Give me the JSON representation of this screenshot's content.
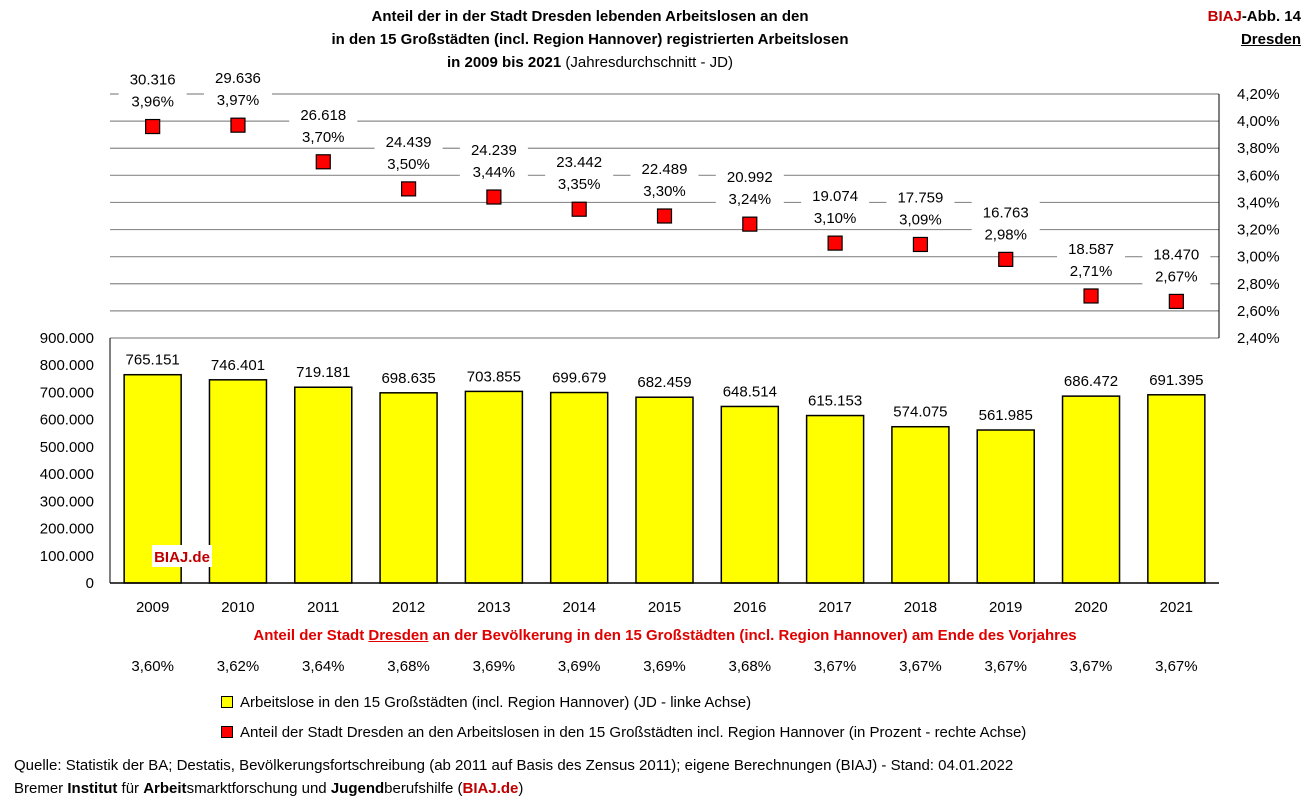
{
  "header": {
    "title_line1": "Anteil der in der Stadt Dresden lebenden Arbeitslosen an den",
    "title_line2": "in den 15 Großstädten (incl. Region Hannover) registrierten Arbeitslosen",
    "title_line3_bold": "in 2009 bis 2021",
    "title_line3_plain": "(Jahresdurchschnitt - JD)",
    "tag_brand": "BIAJ",
    "tag_fig": "-Abb. 14",
    "tag_city": "Dresden"
  },
  "chart_data": {
    "type": "bar+scatter",
    "categories": [
      "2009",
      "2010",
      "2011",
      "2012",
      "2013",
      "2014",
      "2015",
      "2016",
      "2017",
      "2018",
      "2019",
      "2020",
      "2021"
    ],
    "series": [
      {
        "name": "Arbeitslose in den 15 Großstädten (incl. Region Hannover) (JD - linke Achse)",
        "type": "bar",
        "axis": "left",
        "color": "#ffff00",
        "values": [
          765151,
          746401,
          719181,
          698635,
          703855,
          699679,
          682459,
          648514,
          615153,
          574075,
          561985,
          686472,
          691395
        ],
        "labels": [
          "765.151",
          "746.401",
          "719.181",
          "698.635",
          "703.855",
          "699.679",
          "682.459",
          "648.514",
          "615.153",
          "574.075",
          "561.985",
          "686.472",
          "691.395"
        ]
      },
      {
        "name": "Anteil der Stadt Dresden an den Arbeitslosen in den 15 Großstädten incl. Region Hannover (in Prozent - rechte Achse)",
        "type": "scatter",
        "axis": "right",
        "color": "#ff0000",
        "values": [
          3.96,
          3.97,
          3.7,
          3.5,
          3.44,
          3.35,
          3.3,
          3.24,
          3.1,
          3.09,
          2.98,
          2.71,
          2.67
        ],
        "labels": [
          "3,96%",
          "3,97%",
          "3,70%",
          "3,50%",
          "3,44%",
          "3,35%",
          "3,30%",
          "3,24%",
          "3,10%",
          "3,09%",
          "2,98%",
          "2,71%",
          "2,67%"
        ],
        "count_labels": [
          "30.316",
          "29.636",
          "26.618",
          "24.439",
          "24.239",
          "23.442",
          "22.489",
          "20.992",
          "19.074",
          "17.759",
          "16.763",
          "18.587",
          "18.470"
        ]
      }
    ],
    "left_axis": {
      "min": 0,
      "max": 900000,
      "ticks": [
        "0",
        "100.000",
        "200.000",
        "300.000",
        "400.000",
        "500.000",
        "600.000",
        "700.000",
        "800.000",
        "900.000"
      ]
    },
    "right_axis": {
      "min": 2.4,
      "max": 4.2,
      "ticks": [
        "2,40%",
        "2,60%",
        "2,80%",
        "3,00%",
        "3,20%",
        "3,40%",
        "3,60%",
        "3,80%",
        "4,00%",
        "4,20%"
      ]
    },
    "watermark": "BIAJ.de",
    "population_share": {
      "heading_pre": "Anteil der Stadt",
      "heading_city": "Dresden",
      "heading_post": "an der Bevölkerung in den 15 Großstädten (incl. Region Hannover) am Ende des Vorjahres",
      "values": [
        "3,60%",
        "3,62%",
        "3,64%",
        "3,68%",
        "3,69%",
        "3,69%",
        "3,69%",
        "3,68%",
        "3,67%",
        "3,67%",
        "3,67%",
        "3,67%",
        "3,67%"
      ]
    }
  },
  "legend": {
    "bar_label": "Arbeitslose in den 15 Großstädten (incl. Region Hannover) (JD - linke Achse)",
    "marker_label": "Anteil der Stadt Dresden an den Arbeitslosen in den 15 Großstädten incl. Region Hannover (in Prozent - rechte Achse)"
  },
  "footer": {
    "source": "Quelle: Statistik der BA; Destatis, Bevölkerungsfortschreibung (ab 2011 auf Basis des Zensus 2011); eigene Berechnungen (BIAJ) - Stand: 04.01.2022",
    "org_1": "Bremer",
    "org_2": "Institut",
    "org_3": "für",
    "org_4": "Arbeit",
    "org_5": "smarktforschung und",
    "org_6": "Jugend",
    "org_7": "berufshilfe (",
    "org_8": "BIAJ.de",
    "org_9": ")"
  }
}
